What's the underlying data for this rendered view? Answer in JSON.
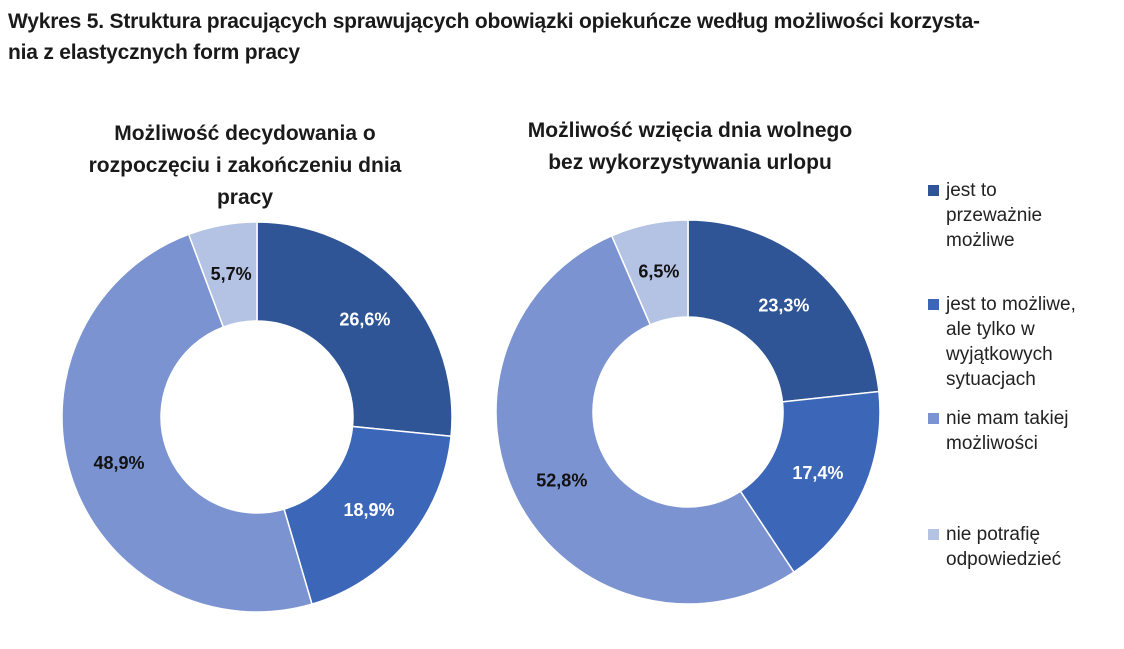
{
  "figure_title": "Wykres 5. Struktura pracujących sprawujących obowiązki opiekuńcze według możliwości korzysta-\nnia z elastycznych form pracy",
  "legend": [
    {
      "label": "jest to\nprzeważnie\nmożliwe",
      "color": "#2f5597"
    },
    {
      "label": "jest to możliwe,\nale tylko w\nwyjątkowych\nsytuacjach",
      "color": "#3c67b8"
    },
    {
      "label": "nie mam takiej\nmożliwości",
      "color": "#7b93d0"
    },
    {
      "label": "nie potrafię\nodpowiedzieć",
      "color": "#b4c2e4"
    }
  ],
  "chart_data": [
    {
      "type": "pie",
      "subtype": "donut",
      "title": "Możliwość decydowania o\nrozpoczęciu  i zakończeniu dnia\npracy",
      "categories": [
        "jest to przeważnie możliwe",
        "jest to możliwe, ale tylko w wyjątkowych sytuacjach",
        "nie mam takiej możliwości",
        "nie potrafię odpowiedzieć"
      ],
      "values": [
        26.6,
        18.9,
        48.9,
        5.7
      ],
      "labels": [
        "26,6%",
        "18,9%",
        "48,9%",
        "5,7%"
      ],
      "label_colors": [
        "#ffffff",
        "#ffffff",
        "#111111",
        "#111111"
      ]
    },
    {
      "type": "pie",
      "subtype": "donut",
      "title": "Możliwość wzięcia dnia wolnego\nbez wykorzystywania urlopu",
      "categories": [
        "jest to przeważnie możliwe",
        "jest to możliwe, ale tylko w wyjątkowych sytuacjach",
        "nie mam takiej możliwości",
        "nie potrafię odpowiedzieć"
      ],
      "values": [
        23.3,
        17.4,
        52.8,
        6.5
      ],
      "labels": [
        "23,3%",
        "17,4%",
        "52,8%",
        "6,5%"
      ],
      "label_colors": [
        "#ffffff",
        "#ffffff",
        "#111111",
        "#111111"
      ]
    }
  ]
}
